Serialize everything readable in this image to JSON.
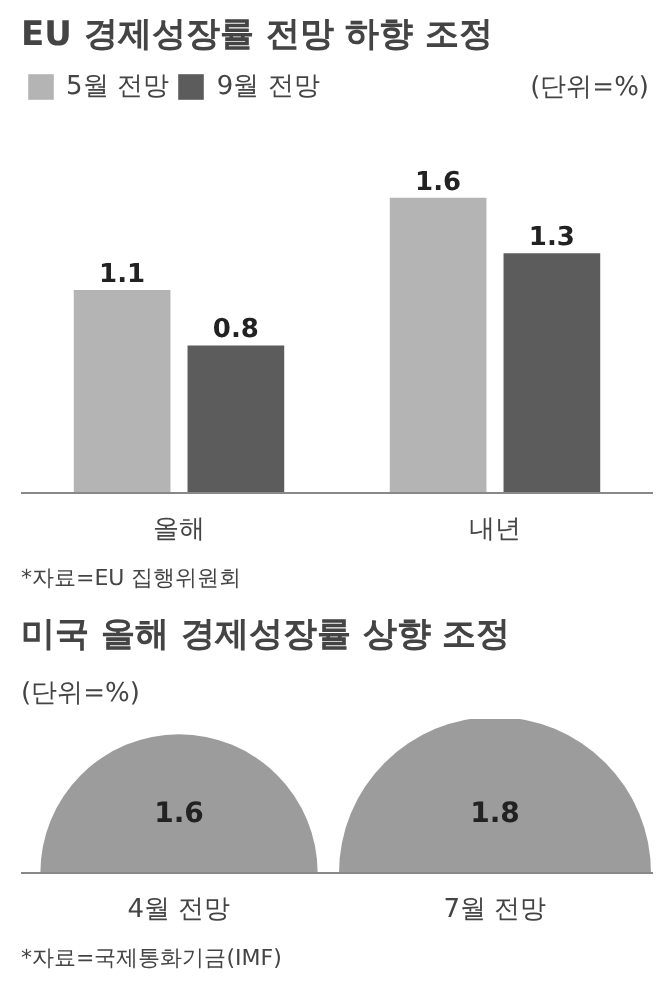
{
  "chart_data": [
    {
      "type": "bar",
      "title": "EU 경제성장률 전망 하향 조정",
      "categories": [
        "올해",
        "내년"
      ],
      "series": [
        {
          "name": "5월 전망",
          "color": "#b4b4b4",
          "values": [
            1.1,
            1.6
          ]
        },
        {
          "name": "9월 전망",
          "color": "#5c5c5c",
          "values": [
            0.8,
            1.3
          ]
        }
      ],
      "data_labels": true,
      "legend": "top left",
      "annotations": [
        "(단위=%)",
        "*자료=EU 집행위원회"
      ]
    },
    {
      "type": "other",
      "title": "미국 올해 경제성장률 상향 조정",
      "categories": [
        "4월 전망",
        "7월 전망"
      ],
      "values": [
        1.6,
        1.8
      ],
      "color": "#9c9c9c",
      "data_labels": true,
      "annotations": [
        "(단위=%)",
        "*자료=국제통화기금(IMF)"
      ]
    }
  ]
}
